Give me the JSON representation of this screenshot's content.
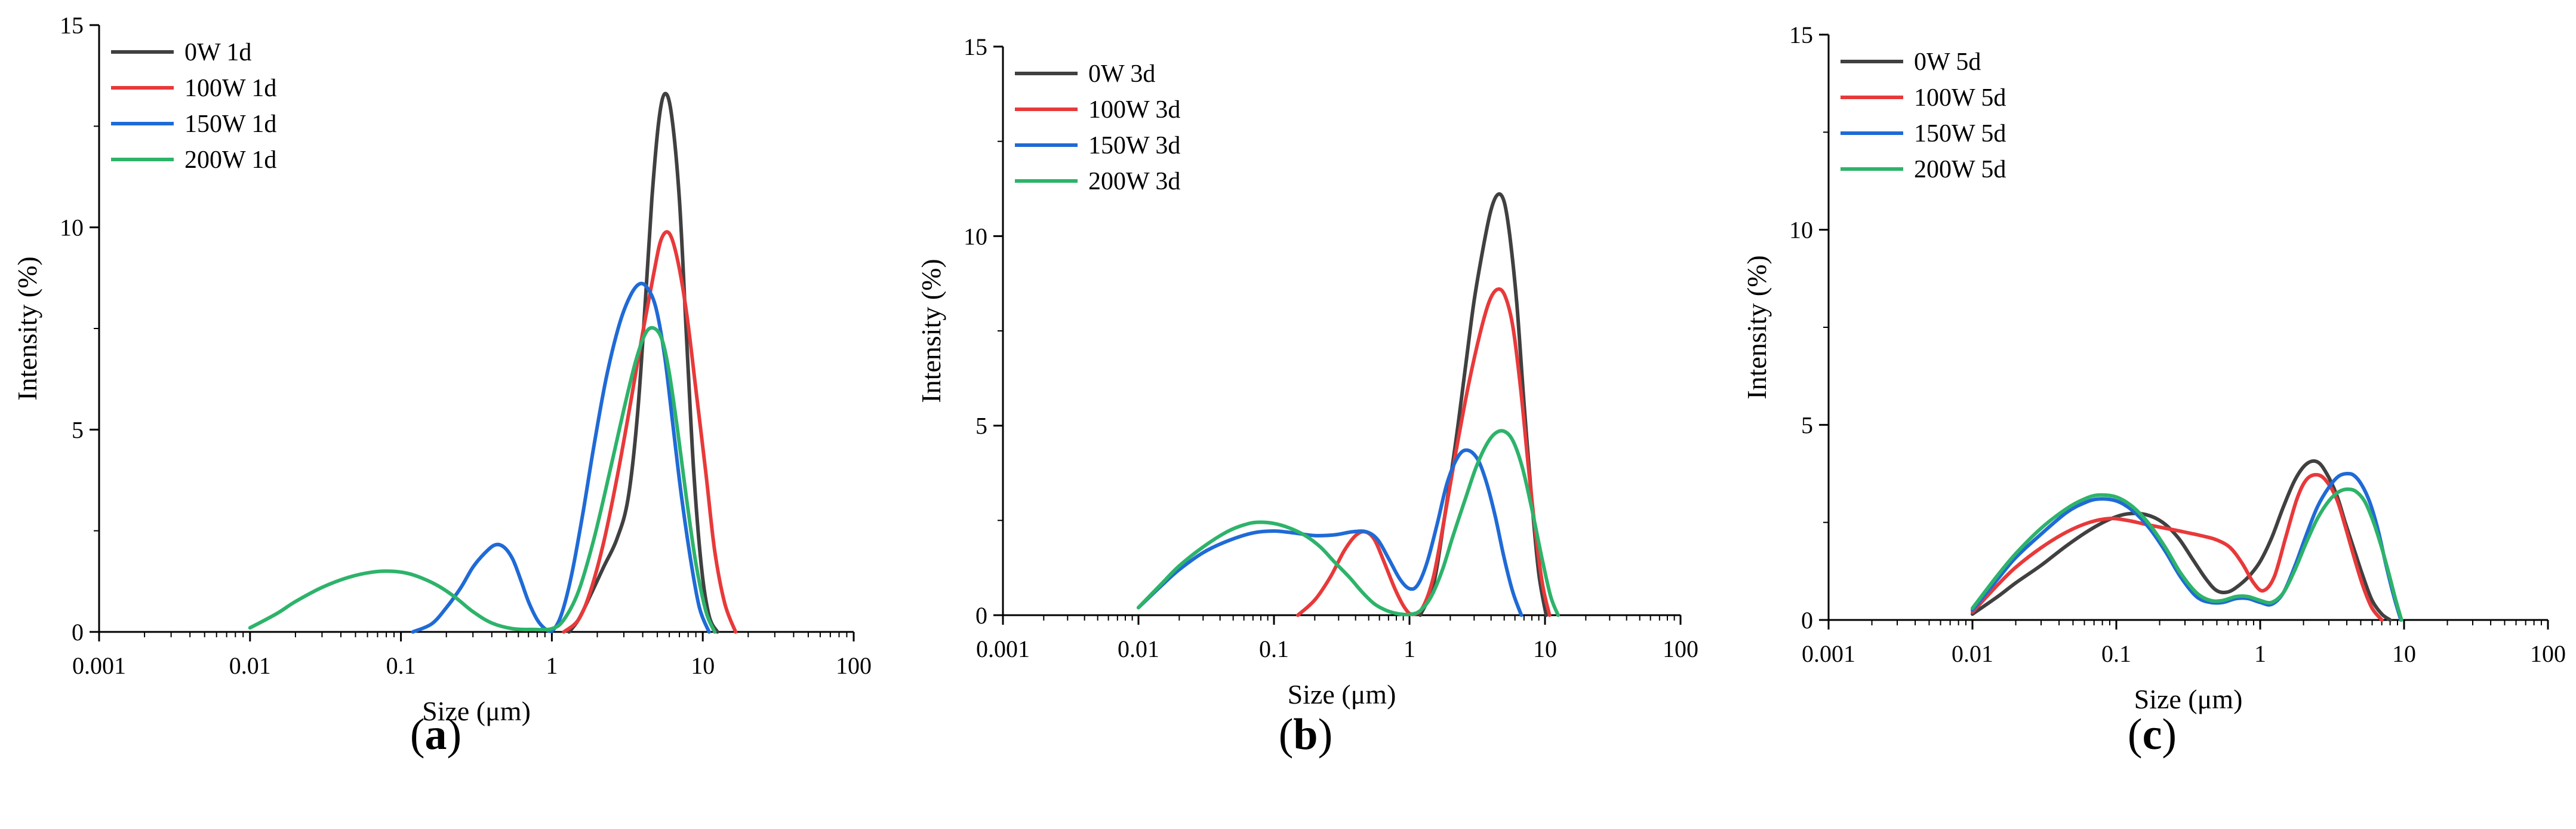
{
  "colors": {
    "0W": "#404040",
    "100W": "#e8393a",
    "150W": "#1f6ad6",
    "200W": "#2db36a",
    "axis": "#000000"
  },
  "chart_data": [
    {
      "type": "line",
      "panel_label": "a",
      "xlabel": "Size (μm)",
      "ylabel": "Intensity (%)",
      "xscale": "log",
      "xlim": [
        0.001,
        100
      ],
      "ylim": [
        0,
        15
      ],
      "xticks": [
        "0.001",
        "0.01",
        "0.1",
        "1",
        "10",
        "100"
      ],
      "yticks": [
        "0",
        "5",
        "10",
        "15"
      ],
      "legend": "top-left",
      "series": [
        {
          "name": "0W 1d",
          "key": "0W",
          "x": [
            1.3,
            1.5,
            1.8,
            2.2,
            2.7,
            3.2,
            3.7,
            4.2,
            4.6,
            5.1,
            5.6,
            6.2,
            7.0,
            7.8,
            8.7,
            9.8,
            11,
            12.5
          ],
          "y": [
            0,
            0.3,
            0.9,
            1.6,
            2.3,
            3.3,
            5.4,
            8.4,
            10.7,
            12.6,
            13.3,
            12.8,
            10.7,
            7.3,
            4.0,
            1.6,
            0.4,
            0
          ]
        },
        {
          "name": "100W 1d",
          "key": "100W",
          "x": [
            1.2,
            1.5,
            1.8,
            2.2,
            2.7,
            3.3,
            4.0,
            4.7,
            5.3,
            6.0,
            6.8,
            7.8,
            9.0,
            10.5,
            12,
            14,
            16.5
          ],
          "y": [
            0,
            0.3,
            1.0,
            2.2,
            3.8,
            5.6,
            7.4,
            8.8,
            9.7,
            9.85,
            9.2,
            7.9,
            6.0,
            3.9,
            2.0,
            0.7,
            0
          ]
        },
        {
          "name": "150W 1d",
          "key": "150W",
          "x": [
            0.12,
            0.16,
            0.2,
            0.25,
            0.3,
            0.36,
            0.42,
            0.48,
            0.55,
            0.62,
            0.7,
            0.8,
            0.9,
            1.0,
            1.15,
            1.35,
            1.6,
            1.9,
            2.3,
            2.8,
            3.3,
            3.8,
            4.3,
            4.9,
            5.6,
            6.3,
            7.2,
            8.3,
            9.5,
            11
          ],
          "y": [
            0,
            0.2,
            0.6,
            1.1,
            1.6,
            1.95,
            2.15,
            2.1,
            1.8,
            1.3,
            0.75,
            0.3,
            0.08,
            0.02,
            0.4,
            1.4,
            2.9,
            4.6,
            6.3,
            7.6,
            8.3,
            8.6,
            8.5,
            8.0,
            6.8,
            5.2,
            3.4,
            1.8,
            0.6,
            0
          ]
        },
        {
          "name": "200W 1d",
          "key": "200W",
          "x": [
            0.01,
            0.015,
            0.02,
            0.03,
            0.045,
            0.065,
            0.085,
            0.11,
            0.14,
            0.18,
            0.23,
            0.3,
            0.4,
            0.55,
            0.75,
            1.0,
            1.2,
            1.5,
            1.9,
            2.4,
            3.0,
            3.6,
            4.2,
            4.8,
            5.4,
            6.0,
            6.8,
            7.8,
            9.0,
            10.5,
            12
          ],
          "y": [
            0.1,
            0.45,
            0.75,
            1.1,
            1.35,
            1.48,
            1.5,
            1.45,
            1.32,
            1.12,
            0.85,
            0.5,
            0.22,
            0.08,
            0.06,
            0.08,
            0.3,
            1.0,
            2.3,
            3.9,
            5.5,
            6.7,
            7.4,
            7.5,
            7.2,
            6.4,
            5.0,
            3.3,
            1.7,
            0.5,
            0
          ]
        }
      ]
    },
    {
      "type": "line",
      "panel_label": "b",
      "xlabel": "Size (μm)",
      "ylabel": "Intensity (%)",
      "xscale": "log",
      "xlim": [
        0.001,
        100
      ],
      "ylim": [
        0,
        15
      ],
      "xticks": [
        "0.001",
        "0.01",
        "0.1",
        "1",
        "10",
        "100"
      ],
      "yticks": [
        "0",
        "5",
        "10",
        "15"
      ],
      "legend": "top-left",
      "series": [
        {
          "name": "0W 3d",
          "key": "0W",
          "x": [
            1.2,
            1.5,
            1.8,
            2.2,
            2.6,
            3.0,
            3.5,
            4.0,
            4.5,
            5.0,
            5.5,
            6.2,
            7.0,
            8.0,
            9.0,
            10.2
          ],
          "y": [
            0,
            0.8,
            2.5,
            4.6,
            6.6,
            8.3,
            9.7,
            10.7,
            11.1,
            10.9,
            10.0,
            8.2,
            5.6,
            3.0,
            1.1,
            0
          ]
        },
        {
          "name": "100W 3d",
          "key": "100W",
          "x": [
            0.15,
            0.2,
            0.26,
            0.33,
            0.4,
            0.47,
            0.55,
            0.65,
            0.78,
            0.92,
            1.05,
            1.25,
            1.5,
            1.8,
            2.2,
            2.7,
            3.3,
            3.9,
            4.5,
            5.1,
            5.8,
            6.6,
            7.5,
            8.5,
            9.6,
            10.8
          ],
          "y": [
            0,
            0.4,
            1.0,
            1.7,
            2.1,
            2.2,
            2.0,
            1.4,
            0.7,
            0.2,
            0.02,
            0.2,
            1.0,
            2.5,
            4.3,
            6.0,
            7.4,
            8.3,
            8.6,
            8.4,
            7.6,
            6.0,
            4.0,
            2.2,
            0.8,
            0
          ]
        },
        {
          "name": "150W 3d",
          "key": "150W",
          "x": [
            0.01,
            0.015,
            0.02,
            0.03,
            0.045,
            0.07,
            0.1,
            0.14,
            0.2,
            0.28,
            0.38,
            0.48,
            0.58,
            0.7,
            0.85,
            1.0,
            1.15,
            1.35,
            1.6,
            1.9,
            2.3,
            2.7,
            3.2,
            3.7,
            4.3,
            5.0,
            5.8,
            6.7
          ],
          "y": [
            0.2,
            0.8,
            1.2,
            1.65,
            1.95,
            2.17,
            2.22,
            2.17,
            2.1,
            2.12,
            2.2,
            2.2,
            2.0,
            1.5,
            0.95,
            0.7,
            0.8,
            1.4,
            2.4,
            3.5,
            4.2,
            4.35,
            4.1,
            3.5,
            2.6,
            1.5,
            0.6,
            0
          ]
        },
        {
          "name": "200W 3d",
          "key": "200W",
          "x": [
            0.01,
            0.015,
            0.02,
            0.03,
            0.045,
            0.06,
            0.075,
            0.1,
            0.13,
            0.17,
            0.22,
            0.28,
            0.36,
            0.45,
            0.55,
            0.68,
            0.82,
            1.0,
            1.2,
            1.45,
            1.75,
            2.1,
            2.6,
            3.1,
            3.7,
            4.3,
            5.0,
            5.8,
            6.8,
            8.0,
            9.5,
            11,
            12.5
          ],
          "y": [
            0.2,
            0.85,
            1.3,
            1.8,
            2.2,
            2.38,
            2.45,
            2.42,
            2.3,
            2.1,
            1.8,
            1.4,
            1.0,
            0.6,
            0.3,
            0.12,
            0.04,
            0.02,
            0.12,
            0.5,
            1.2,
            2.1,
            3.1,
            3.9,
            4.5,
            4.8,
            4.85,
            4.6,
            3.9,
            2.8,
            1.5,
            0.5,
            0
          ]
        }
      ]
    },
    {
      "type": "line",
      "panel_label": "c",
      "xlabel": "Size (μm)",
      "ylabel": "Intensity (%)",
      "xscale": "log",
      "xlim": [
        0.001,
        100
      ],
      "ylim": [
        0,
        15
      ],
      "xticks": [
        "0.001",
        "0.01",
        "0.1",
        "1",
        "10",
        "100"
      ],
      "yticks": [
        "0",
        "5",
        "10",
        "15"
      ],
      "legend": "top-left",
      "series": [
        {
          "name": "0W 5d",
          "key": "0W",
          "x": [
            0.01,
            0.015,
            0.02,
            0.03,
            0.045,
            0.065,
            0.09,
            0.12,
            0.16,
            0.21,
            0.27,
            0.34,
            0.42,
            0.5,
            0.6,
            0.72,
            0.85,
            1.0,
            1.2,
            1.45,
            1.75,
            2.1,
            2.5,
            2.9,
            3.4,
            3.9,
            4.5,
            5.2,
            6.0,
            7.0,
            8.0
          ],
          "y": [
            0.15,
            0.6,
            0.95,
            1.4,
            1.9,
            2.3,
            2.58,
            2.72,
            2.7,
            2.5,
            2.1,
            1.55,
            1.05,
            0.75,
            0.72,
            0.9,
            1.15,
            1.5,
            2.1,
            2.9,
            3.6,
            4.0,
            4.05,
            3.75,
            3.2,
            2.5,
            1.8,
            1.1,
            0.5,
            0.15,
            0
          ]
        },
        {
          "name": "100W 5d",
          "key": "100W",
          "x": [
            0.01,
            0.015,
            0.02,
            0.03,
            0.045,
            0.065,
            0.09,
            0.12,
            0.16,
            0.22,
            0.3,
            0.4,
            0.5,
            0.62,
            0.75,
            0.9,
            1.05,
            1.25,
            1.5,
            1.8,
            2.1,
            2.5,
            2.9,
            3.4,
            3.9,
            4.5,
            5.2,
            6.0,
            7.0
          ],
          "y": [
            0.2,
            0.9,
            1.35,
            1.85,
            2.25,
            2.5,
            2.6,
            2.55,
            2.45,
            2.35,
            2.25,
            2.15,
            2.05,
            1.85,
            1.45,
            0.95,
            0.75,
            1.1,
            2.1,
            3.1,
            3.6,
            3.72,
            3.55,
            3.1,
            2.4,
            1.6,
            0.85,
            0.3,
            0
          ]
        },
        {
          "name": "150W 5d",
          "key": "150W",
          "x": [
            0.01,
            0.015,
            0.02,
            0.03,
            0.045,
            0.06,
            0.075,
            0.1,
            0.13,
            0.17,
            0.22,
            0.28,
            0.36,
            0.45,
            0.55,
            0.68,
            0.82,
            1.0,
            1.2,
            1.45,
            1.75,
            2.1,
            2.5,
            3.0,
            3.5,
            4.0,
            4.5,
            5.1,
            5.8,
            6.6,
            7.5,
            8.5,
            9.5
          ],
          "y": [
            0.25,
            1.05,
            1.6,
            2.2,
            2.75,
            3.0,
            3.1,
            3.05,
            2.8,
            2.35,
            1.75,
            1.1,
            0.6,
            0.45,
            0.45,
            0.55,
            0.55,
            0.45,
            0.4,
            0.7,
            1.4,
            2.2,
            2.9,
            3.4,
            3.68,
            3.75,
            3.7,
            3.45,
            3.0,
            2.3,
            1.4,
            0.6,
            0
          ]
        },
        {
          "name": "200W 5d",
          "key": "200W",
          "x": [
            0.01,
            0.015,
            0.02,
            0.03,
            0.045,
            0.06,
            0.075,
            0.1,
            0.13,
            0.17,
            0.22,
            0.28,
            0.36,
            0.45,
            0.55,
            0.68,
            0.82,
            1.0,
            1.2,
            1.45,
            1.75,
            2.1,
            2.5,
            3.0,
            3.5,
            4.0,
            4.6,
            5.3,
            6.0,
            6.8,
            7.7,
            8.7,
            9.6
          ],
          "y": [
            0.3,
            1.15,
            1.7,
            2.35,
            2.85,
            3.1,
            3.2,
            3.15,
            2.9,
            2.45,
            1.85,
            1.2,
            0.7,
            0.5,
            0.5,
            0.6,
            0.6,
            0.5,
            0.45,
            0.7,
            1.3,
            2.0,
            2.6,
            3.05,
            3.28,
            3.35,
            3.3,
            3.05,
            2.6,
            2.0,
            1.3,
            0.55,
            0
          ]
        }
      ]
    }
  ]
}
